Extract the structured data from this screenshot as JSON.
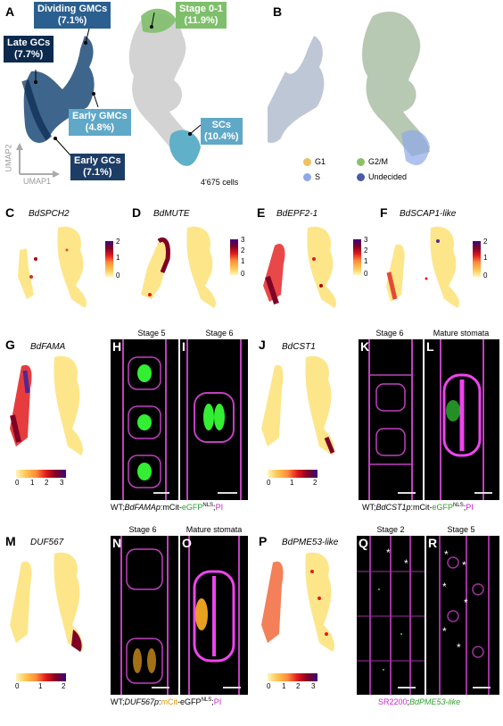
{
  "panels": {
    "A": "A",
    "B": "B",
    "C": "C",
    "D": "D",
    "E": "E",
    "F": "F",
    "G": "G",
    "H": "H",
    "I": "I",
    "J": "J",
    "K": "K",
    "L": "L",
    "M": "M",
    "N": "N",
    "O": "O",
    "P": "P",
    "Q": "Q",
    "R": "R"
  },
  "umap_a": {
    "labels": {
      "dividing_gmcs": "Dividing GMCs\n(7.1%)",
      "stage01": "Stage 0-1\n(11.9%)",
      "late_gcs": "Late GCs\n(7.7%)",
      "early_gmcs": "Early GMCs\n(4.8%)",
      "scs": "SCs\n(10.4%)",
      "early_gcs": "Early GCs\n(7.1%)"
    },
    "axis1": "UMAP1",
    "axis2": "UMAP2",
    "cells": "4'675 cells",
    "colors": {
      "dividing_gmcs": "#2b5f8f",
      "stage01": "#7fbf6b",
      "late_gcs": "#0c2a4e",
      "early_gmcs": "#5fa8c8",
      "scs": "#5fa8c8",
      "early_gcs": "#1c3d66"
    }
  },
  "umap_b": {
    "legend": [
      {
        "label": "G1",
        "color": "#f0c060"
      },
      {
        "label": "G2/M",
        "color": "#8cc068"
      },
      {
        "label": "S",
        "color": "#8ea8e8"
      },
      {
        "label": "Undecided",
        "color": "#4a5aa8"
      }
    ]
  },
  "genes": {
    "C": "BdSPCH2",
    "D": "BdMUTE",
    "E": "BdEPF2-1",
    "F": "BdSCAP1-like",
    "G": "BdFAMA",
    "J": "BdCST1",
    "M": "DUF567",
    "P": "BdPME53-like"
  },
  "scales": {
    "C": [
      "2",
      "1",
      "0"
    ],
    "D": [
      "3",
      "2",
      "1",
      "0"
    ],
    "E": [
      "3",
      "2",
      "1",
      "0"
    ],
    "F": [
      "2",
      "1",
      "0"
    ],
    "G": [
      "0",
      "1",
      "2",
      "3"
    ],
    "J": [
      "0",
      "1",
      "2"
    ],
    "M": [
      "0",
      "1",
      "2"
    ],
    "P": [
      "0",
      "1",
      "2",
      "3"
    ]
  },
  "stages": {
    "H": "Stage 5",
    "I": "Stage 6",
    "K": "Stage 6",
    "L": "Mature stomata",
    "N": "Stage 6",
    "O": "Mature stomata",
    "Q": "Stage 2",
    "R": "Stage 5"
  },
  "captions": {
    "fama": {
      "p1": "WT;",
      "p2": "BdFAMAp",
      "p3": ":mCit-",
      "p4": "eGFP",
      "p5": "NLS",
      "p6": ";",
      "p7": "PI"
    },
    "cst1": {
      "p1": "WT;",
      "p2": "BdCST1p",
      "p3": ":mCit-",
      "p4": "eGFP",
      "p5": "NLS",
      "p6": ";",
      "p7": "PI"
    },
    "duf": {
      "p1": "WT;",
      "p2": "DUF567p",
      "p3": ":",
      "p4": "mCit",
      "p5": "-eGFP",
      "p6": "NLS",
      "p7": ";",
      "p8": "PI"
    },
    "pme": {
      "p1": "SR2200",
      "p2": ";",
      "p3": "BdPME53-like"
    }
  },
  "star": "*"
}
